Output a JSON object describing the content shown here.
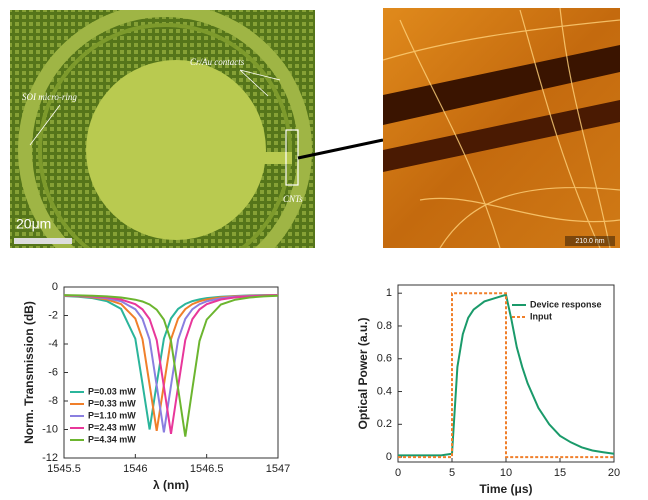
{
  "images": {
    "micrograph": {
      "labels": [
        "Cr/Au contacts",
        "SOI micro-ring",
        "CNTs"
      ],
      "scale_bar": "20μm"
    },
    "afm": {
      "scale_bar": "210.0 nm"
    }
  },
  "chart_data": [
    {
      "type": "line",
      "xlabel": "λ (nm)",
      "ylabel": "Norm. Transmission (dB)",
      "x": [
        1545.5,
        1545.6,
        1545.7,
        1545.8,
        1545.9,
        1546.0,
        1546.05,
        1546.1,
        1546.15,
        1546.2,
        1546.25,
        1546.3,
        1546.35,
        1546.4,
        1546.45,
        1546.5,
        1546.6,
        1546.7,
        1546.8,
        1546.9,
        1547
      ],
      "xlim": [
        1545.5,
        1547
      ],
      "xticks": [
        1545.5,
        1546,
        1546.5,
        1547
      ],
      "ylim": [
        -12,
        0
      ],
      "yticks": [
        0,
        -2,
        -4,
        -6,
        -8,
        -10,
        -12
      ],
      "legend": "lower left",
      "series": [
        {
          "name": "P=0.03 mW",
          "color": "#2bb59b",
          "values": [
            -0.63,
            -0.68,
            -0.78,
            -0.99,
            -1.54,
            -3.63,
            -6.79,
            -10.0,
            -6.79,
            -3.63,
            -2.2,
            -1.54,
            -1.19,
            -0.99,
            -0.87,
            -0.78,
            -0.68,
            -0.63,
            -0.59,
            -0.57,
            -0.56
          ]
        },
        {
          "name": "P=0.33 mW",
          "color": "#f07f2a",
          "values": [
            -0.61,
            -0.65,
            -0.73,
            -0.87,
            -1.2,
            -2.22,
            -3.66,
            -6.86,
            -10.1,
            -6.86,
            -3.66,
            -2.22,
            -1.55,
            -1.2,
            -1.0,
            -0.87,
            -0.73,
            -0.65,
            -0.61,
            -0.58,
            -0.56
          ]
        },
        {
          "name": "P=1.10 mW",
          "color": "#8a7fe0",
          "values": [
            -0.6,
            -0.63,
            -0.69,
            -0.79,
            -1.0,
            -1.56,
            -2.24,
            -3.69,
            -6.92,
            -10.2,
            -6.92,
            -3.69,
            -2.24,
            -1.56,
            -1.21,
            -1.0,
            -0.79,
            -0.69,
            -0.63,
            -0.6,
            -0.57
          ]
        },
        {
          "name": "P=2.43 mW",
          "color": "#e8379a",
          "values": [
            -0.58,
            -0.61,
            -0.66,
            -0.73,
            -0.88,
            -1.21,
            -1.57,
            -2.25,
            -3.72,
            -6.99,
            -10.3,
            -6.99,
            -3.72,
            -2.25,
            -1.57,
            -1.21,
            -0.88,
            -0.73,
            -0.66,
            -0.61,
            -0.58
          ]
        },
        {
          "name": "P=4.34 mW",
          "color": "#6cb52f",
          "values": [
            -0.57,
            -0.59,
            -0.62,
            -0.66,
            -0.74,
            -0.89,
            -1.02,
            -1.23,
            -1.59,
            -2.29,
            -3.79,
            -7.12,
            -10.5,
            -7.12,
            -3.79,
            -2.29,
            -1.23,
            -0.89,
            -0.74,
            -0.66,
            -0.62
          ]
        }
      ]
    },
    {
      "type": "line",
      "xlabel": "Time (μs)",
      "ylabel": "Optical Power (a.u.)",
      "xlim": [
        0,
        20
      ],
      "xticks": [
        0,
        5,
        10,
        15,
        20
      ],
      "ylim": [
        -0.03,
        1.05
      ],
      "yticks": [
        0,
        0.2,
        0.4,
        0.6,
        0.8,
        1
      ],
      "legend": "upper right",
      "series": [
        {
          "name": "Device response",
          "color": "#1a9a6a",
          "dash": false,
          "x": [
            0,
            2,
            4,
            5,
            5.5,
            6,
            6.5,
            7,
            8,
            9,
            10,
            10.5,
            11,
            11.5,
            12,
            13,
            14,
            15,
            16,
            17,
            18,
            19,
            20
          ],
          "values": [
            0.01,
            0.01,
            0.01,
            0.02,
            0.55,
            0.75,
            0.85,
            0.9,
            0.95,
            0.97,
            0.99,
            0.84,
            0.67,
            0.55,
            0.45,
            0.3,
            0.2,
            0.13,
            0.09,
            0.06,
            0.04,
            0.03,
            0.02
          ]
        },
        {
          "name": "Input",
          "color": "#f07f2a",
          "dash": true,
          "x": [
            0,
            5,
            5,
            10,
            10,
            20
          ],
          "values": [
            0,
            0,
            1,
            1,
            0,
            0
          ]
        }
      ]
    }
  ]
}
